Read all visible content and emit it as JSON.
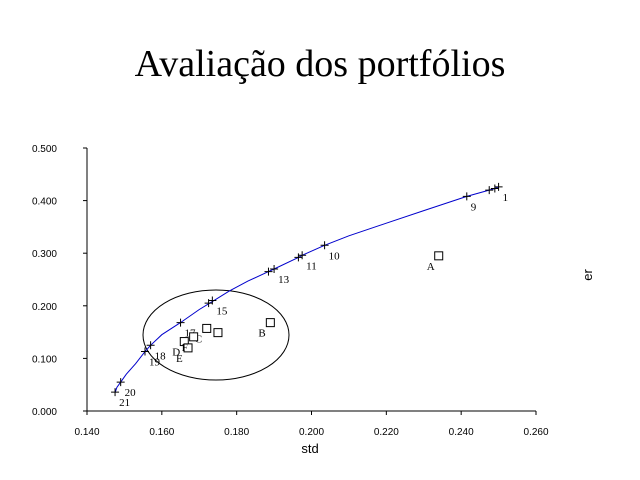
{
  "chart_data": {
    "type": "scatter",
    "title": "Avaliação dos portfólios",
    "xlabel": "std",
    "ylabel": "er",
    "xlim": [
      0.14,
      0.26
    ],
    "ylim": [
      0.0,
      0.5
    ],
    "x_ticks": [
      "0.140",
      "0.160",
      "0.180",
      "0.200",
      "0.220",
      "0.240",
      "0.260"
    ],
    "y_ticks": [
      "0.000",
      "0.100",
      "0.200",
      "0.300",
      "0.400",
      "0.500"
    ],
    "grid": false,
    "legend": "none",
    "frontier": {
      "color": "#0000cc",
      "x": [
        0.1475,
        0.148,
        0.149,
        0.1505,
        0.153,
        0.1555,
        0.157,
        0.16,
        0.165,
        0.17,
        0.1735,
        0.178,
        0.183,
        0.1885,
        0.19,
        0.1965,
        0.1975,
        0.2035,
        0.21,
        0.22,
        0.23,
        0.2415,
        0.2475,
        0.249,
        0.25
      ],
      "y": [
        0.035,
        0.045,
        0.055,
        0.07,
        0.09,
        0.113,
        0.125,
        0.145,
        0.168,
        0.193,
        0.208,
        0.228,
        0.247,
        0.265,
        0.27,
        0.292,
        0.296,
        0.315,
        0.333,
        0.357,
        0.381,
        0.408,
        0.42,
        0.423,
        0.426
      ]
    },
    "frontier_markers": {
      "x": [
        0.1475,
        0.149,
        0.1555,
        0.157,
        0.165,
        0.1725,
        0.1735,
        0.1885,
        0.19,
        0.1965,
        0.1975,
        0.2035,
        0.2415,
        0.2475,
        0.249,
        0.25
      ],
      "y": [
        0.036,
        0.055,
        0.113,
        0.125,
        0.168,
        0.205,
        0.21,
        0.265,
        0.27,
        0.292,
        0.296,
        0.315,
        0.408,
        0.42,
        0.423,
        0.426
      ]
    },
    "frontier_labels": [
      {
        "label": "1",
        "x": 0.25,
        "y": 0.426
      },
      {
        "label": "9",
        "x": 0.2415,
        "y": 0.408
      },
      {
        "label": "10",
        "x": 0.2035,
        "y": 0.315
      },
      {
        "label": "11",
        "x": 0.1975,
        "y": 0.296
      },
      {
        "label": "13",
        "x": 0.19,
        "y": 0.27
      },
      {
        "label": "15",
        "x": 0.1735,
        "y": 0.21
      },
      {
        "label": "17",
        "x": 0.165,
        "y": 0.168
      },
      {
        "label": "18",
        "x": 0.157,
        "y": 0.125
      },
      {
        "label": "19",
        "x": 0.1555,
        "y": 0.113
      },
      {
        "label": "20",
        "x": 0.149,
        "y": 0.055
      },
      {
        "label": "21",
        "x": 0.1475,
        "y": 0.036
      }
    ],
    "portfolios": [
      {
        "label": "A",
        "x": 0.234,
        "y": 0.295
      },
      {
        "label": "B",
        "x": 0.189,
        "y": 0.168
      },
      {
        "label": "C",
        "x": 0.172,
        "y": 0.157
      },
      {
        "label": "D",
        "x": 0.166,
        "y": 0.132
      },
      {
        "label": "E",
        "x": 0.167,
        "y": 0.12
      },
      {
        "label": "F",
        "x": 0.1685,
        "y": 0.141
      },
      {
        "label": "",
        "x": 0.175,
        "y": 0.149
      }
    ]
  }
}
